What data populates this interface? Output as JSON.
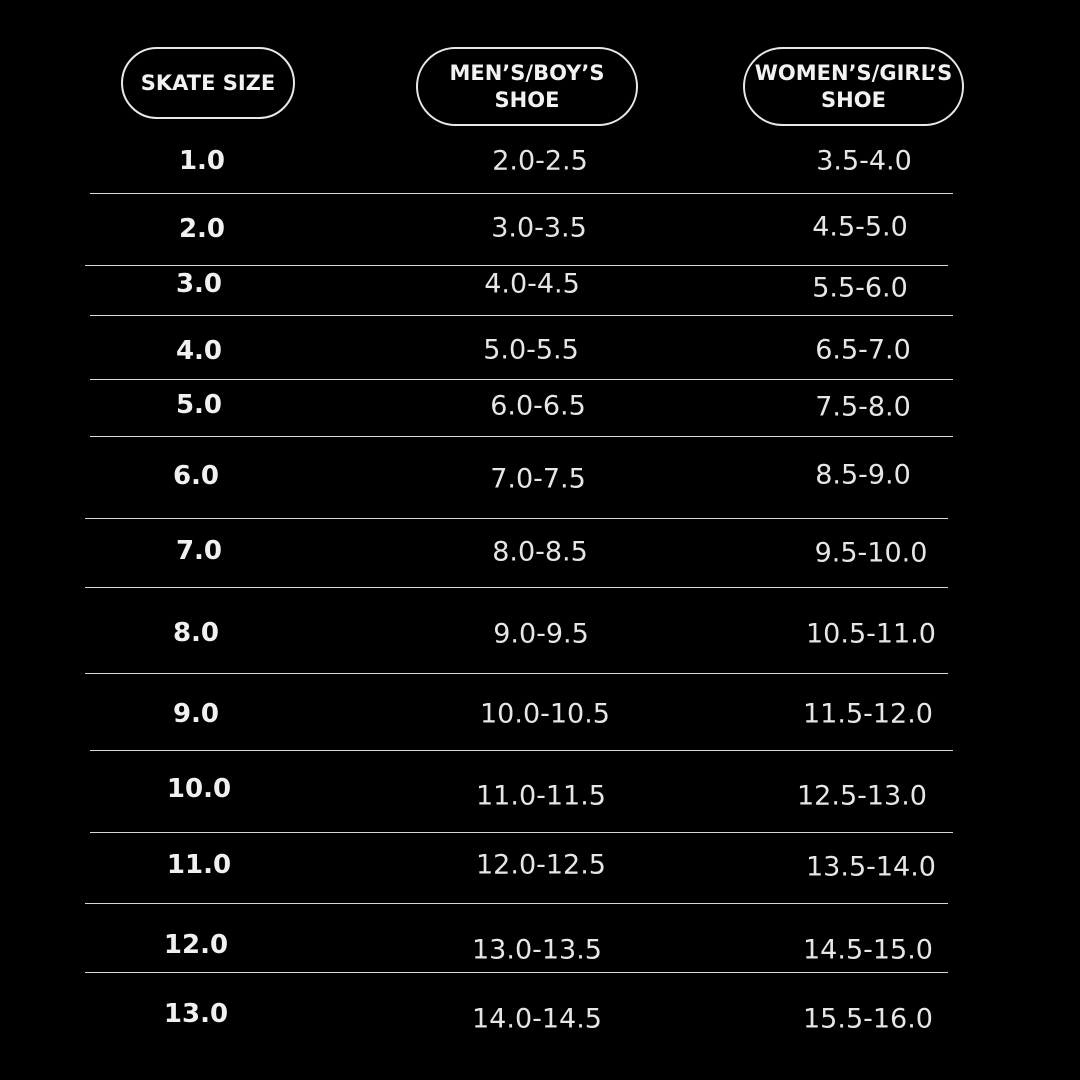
{
  "headers": {
    "skate_size": "SKATE SIZE",
    "mens_line1": "MEN’S/BOY’S",
    "mens_line2": "SHOE",
    "womens_line1": "WOMEN’S/GIRL’S",
    "womens_line2": "SHOE"
  },
  "rows": [
    {
      "skate": "1.0",
      "mens": "2.0-2.5",
      "womens": "3.5-4.0"
    },
    {
      "skate": "2.0",
      "mens": "3.0-3.5",
      "womens": "4.5-5.0"
    },
    {
      "skate": "3.0",
      "mens": "4.0-4.5",
      "womens": "5.5-6.0"
    },
    {
      "skate": "4.0",
      "mens": "5.0-5.5",
      "womens": "6.5-7.0"
    },
    {
      "skate": "5.0",
      "mens": "6.0-6.5",
      "womens": "7.5-8.0"
    },
    {
      "skate": "6.0",
      "mens": "7.0-7.5",
      "womens": "8.5-9.0"
    },
    {
      "skate": "7.0",
      "mens": "8.0-8.5",
      "womens": "9.5-10.0"
    },
    {
      "skate": "8.0",
      "mens": "9.0-9.5",
      "womens": "10.5-11.0"
    },
    {
      "skate": "9.0",
      "mens": "10.0-10.5",
      "womens": "11.5-12.0"
    },
    {
      "skate": "10.0",
      "mens": "11.0-11.5",
      "womens": "12.5-13.0"
    },
    {
      "skate": "11.0",
      "mens": "12.0-12.5",
      "womens": "13.5-14.0"
    },
    {
      "skate": "12.0",
      "mens": "13.0-13.5",
      "womens": "14.5-15.0"
    },
    {
      "skate": "13.0",
      "mens": "14.0-14.5",
      "womens": "15.5-16.0"
    }
  ]
}
